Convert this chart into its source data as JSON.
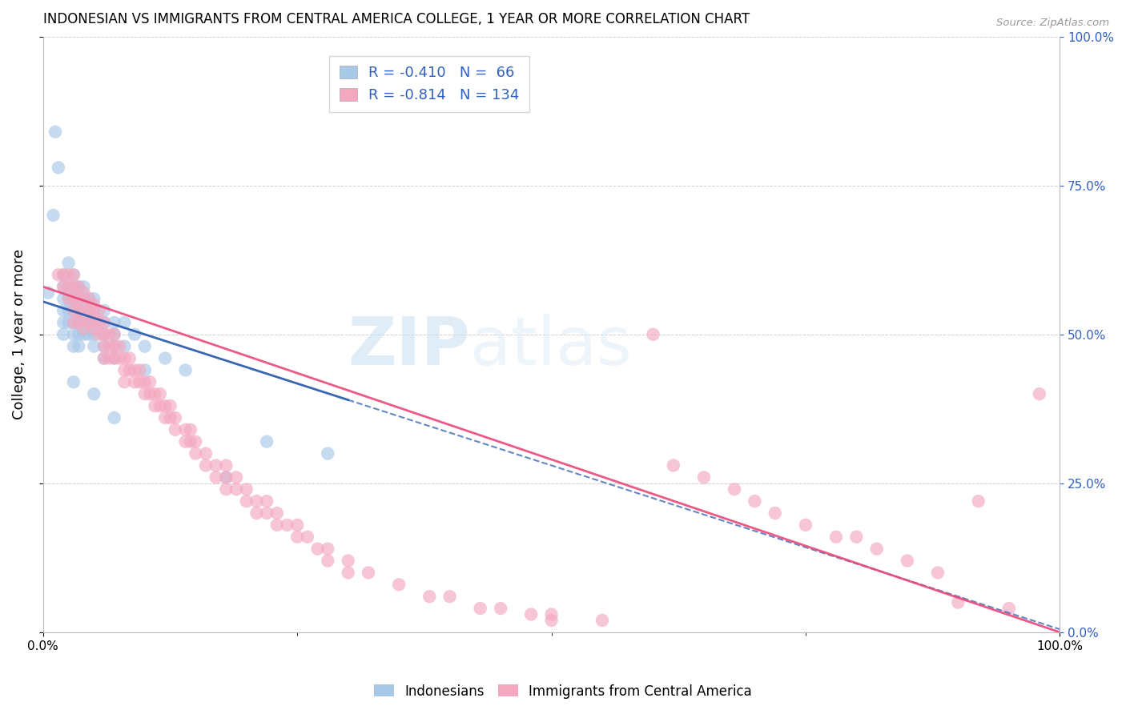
{
  "title": "INDONESIAN VS IMMIGRANTS FROM CENTRAL AMERICA COLLEGE, 1 YEAR OR MORE CORRELATION CHART",
  "source": "Source: ZipAtlas.com",
  "ylabel": "College, 1 year or more",
  "watermark_zip": "ZIP",
  "watermark_atlas": "atlas",
  "R_indonesian": -0.41,
  "N_indonesian": 66,
  "R_central": -0.814,
  "N_central": 134,
  "indonesian_color": "#a8c8e8",
  "indonesian_line_color": "#2255aa",
  "central_color": "#f4a8c0",
  "central_line_color": "#e84878",
  "indonesian_scatter": [
    [
      0.5,
      57
    ],
    [
      1.0,
      70
    ],
    [
      1.2,
      84
    ],
    [
      1.5,
      78
    ],
    [
      2.0,
      60
    ],
    [
      2.0,
      58
    ],
    [
      2.0,
      56
    ],
    [
      2.0,
      54
    ],
    [
      2.0,
      52
    ],
    [
      2.0,
      50
    ],
    [
      2.5,
      62
    ],
    [
      2.5,
      58
    ],
    [
      2.5,
      56
    ],
    [
      2.5,
      54
    ],
    [
      2.5,
      52
    ],
    [
      3.0,
      60
    ],
    [
      3.0,
      58
    ],
    [
      3.0,
      56
    ],
    [
      3.0,
      54
    ],
    [
      3.0,
      52
    ],
    [
      3.0,
      50
    ],
    [
      3.0,
      48
    ],
    [
      3.5,
      58
    ],
    [
      3.5,
      56
    ],
    [
      3.5,
      54
    ],
    [
      3.5,
      52
    ],
    [
      3.5,
      50
    ],
    [
      3.5,
      48
    ],
    [
      4.0,
      58
    ],
    [
      4.0,
      56
    ],
    [
      4.0,
      54
    ],
    [
      4.0,
      52
    ],
    [
      4.0,
      50
    ],
    [
      4.5,
      56
    ],
    [
      4.5,
      54
    ],
    [
      4.5,
      52
    ],
    [
      4.5,
      50
    ],
    [
      5.0,
      56
    ],
    [
      5.0,
      54
    ],
    [
      5.0,
      52
    ],
    [
      5.0,
      50
    ],
    [
      5.0,
      48
    ],
    [
      6.0,
      54
    ],
    [
      6.0,
      52
    ],
    [
      6.0,
      50
    ],
    [
      6.0,
      48
    ],
    [
      6.0,
      46
    ],
    [
      7.0,
      52
    ],
    [
      7.0,
      50
    ],
    [
      7.0,
      48
    ],
    [
      7.0,
      46
    ],
    [
      8.0,
      52
    ],
    [
      8.0,
      48
    ],
    [
      9.0,
      50
    ],
    [
      10.0,
      48
    ],
    [
      10.0,
      44
    ],
    [
      12.0,
      46
    ],
    [
      14.0,
      44
    ],
    [
      18.0,
      26
    ],
    [
      22.0,
      32
    ],
    [
      28.0,
      30
    ],
    [
      3.0,
      42
    ],
    [
      5.0,
      40
    ],
    [
      7.0,
      36
    ]
  ],
  "central_scatter": [
    [
      1.5,
      60
    ],
    [
      2.0,
      60
    ],
    [
      2.0,
      58
    ],
    [
      2.5,
      60
    ],
    [
      2.5,
      58
    ],
    [
      2.5,
      56
    ],
    [
      3.0,
      60
    ],
    [
      3.0,
      58
    ],
    [
      3.0,
      56
    ],
    [
      3.0,
      54
    ],
    [
      3.0,
      52
    ],
    [
      3.5,
      58
    ],
    [
      3.5,
      56
    ],
    [
      3.5,
      54
    ],
    [
      3.5,
      52
    ],
    [
      4.0,
      57
    ],
    [
      4.0,
      55
    ],
    [
      4.0,
      53
    ],
    [
      4.0,
      51
    ],
    [
      4.5,
      56
    ],
    [
      4.5,
      54
    ],
    [
      4.5,
      52
    ],
    [
      5.0,
      55
    ],
    [
      5.0,
      53
    ],
    [
      5.0,
      51
    ],
    [
      5.5,
      54
    ],
    [
      5.5,
      52
    ],
    [
      5.5,
      50
    ],
    [
      6.0,
      52
    ],
    [
      6.0,
      50
    ],
    [
      6.0,
      48
    ],
    [
      6.0,
      46
    ],
    [
      6.5,
      50
    ],
    [
      6.5,
      48
    ],
    [
      6.5,
      46
    ],
    [
      7.0,
      50
    ],
    [
      7.0,
      48
    ],
    [
      7.0,
      46
    ],
    [
      7.5,
      48
    ],
    [
      7.5,
      46
    ],
    [
      8.0,
      46
    ],
    [
      8.0,
      44
    ],
    [
      8.0,
      42
    ],
    [
      8.5,
      46
    ],
    [
      8.5,
      44
    ],
    [
      9.0,
      44
    ],
    [
      9.0,
      42
    ],
    [
      9.5,
      44
    ],
    [
      9.5,
      42
    ],
    [
      10.0,
      42
    ],
    [
      10.0,
      40
    ],
    [
      10.5,
      42
    ],
    [
      10.5,
      40
    ],
    [
      11.0,
      40
    ],
    [
      11.0,
      38
    ],
    [
      11.5,
      40
    ],
    [
      11.5,
      38
    ],
    [
      12.0,
      38
    ],
    [
      12.0,
      36
    ],
    [
      12.5,
      38
    ],
    [
      12.5,
      36
    ],
    [
      13.0,
      36
    ],
    [
      13.0,
      34
    ],
    [
      14.0,
      34
    ],
    [
      14.0,
      32
    ],
    [
      14.5,
      34
    ],
    [
      14.5,
      32
    ],
    [
      15.0,
      32
    ],
    [
      15.0,
      30
    ],
    [
      16.0,
      30
    ],
    [
      16.0,
      28
    ],
    [
      17.0,
      28
    ],
    [
      17.0,
      26
    ],
    [
      18.0,
      28
    ],
    [
      18.0,
      26
    ],
    [
      18.0,
      24
    ],
    [
      19.0,
      26
    ],
    [
      19.0,
      24
    ],
    [
      20.0,
      24
    ],
    [
      20.0,
      22
    ],
    [
      21.0,
      22
    ],
    [
      21.0,
      20
    ],
    [
      22.0,
      22
    ],
    [
      22.0,
      20
    ],
    [
      23.0,
      20
    ],
    [
      23.0,
      18
    ],
    [
      24.0,
      18
    ],
    [
      25.0,
      18
    ],
    [
      25.0,
      16
    ],
    [
      26.0,
      16
    ],
    [
      27.0,
      14
    ],
    [
      28.0,
      14
    ],
    [
      28.0,
      12
    ],
    [
      30.0,
      12
    ],
    [
      30.0,
      10
    ],
    [
      32.0,
      10
    ],
    [
      35.0,
      8
    ],
    [
      38.0,
      6
    ],
    [
      40.0,
      6
    ],
    [
      43.0,
      4
    ],
    [
      45.0,
      4
    ],
    [
      48.0,
      3
    ],
    [
      50.0,
      3
    ],
    [
      50.0,
      2
    ],
    [
      55.0,
      2
    ],
    [
      60.0,
      50
    ],
    [
      62.0,
      28
    ],
    [
      65.0,
      26
    ],
    [
      68.0,
      24
    ],
    [
      70.0,
      22
    ],
    [
      72.0,
      20
    ],
    [
      75.0,
      18
    ],
    [
      78.0,
      16
    ],
    [
      80.0,
      16
    ],
    [
      82.0,
      14
    ],
    [
      85.0,
      12
    ],
    [
      88.0,
      10
    ],
    [
      90.0,
      5
    ],
    [
      92.0,
      22
    ],
    [
      95.0,
      4
    ],
    [
      98.0,
      40
    ]
  ],
  "xlim": [
    0,
    100
  ],
  "ylim": [
    0,
    100
  ],
  "ytick_values": [
    0,
    25,
    50,
    75,
    100
  ],
  "ytick_labels": [
    "0.0%",
    "25.0%",
    "50.0%",
    "75.0%",
    "100.0%"
  ],
  "xtick_values": [
    0,
    100
  ],
  "xtick_labels": [
    "0.0%",
    "100.0%"
  ],
  "right_ytick_color": "#3060c0",
  "grid_color": "#cccccc",
  "line_indo_intercept": 55.5,
  "line_indo_slope": -0.55,
  "line_cent_intercept": 58.0,
  "line_cent_slope": -0.58
}
